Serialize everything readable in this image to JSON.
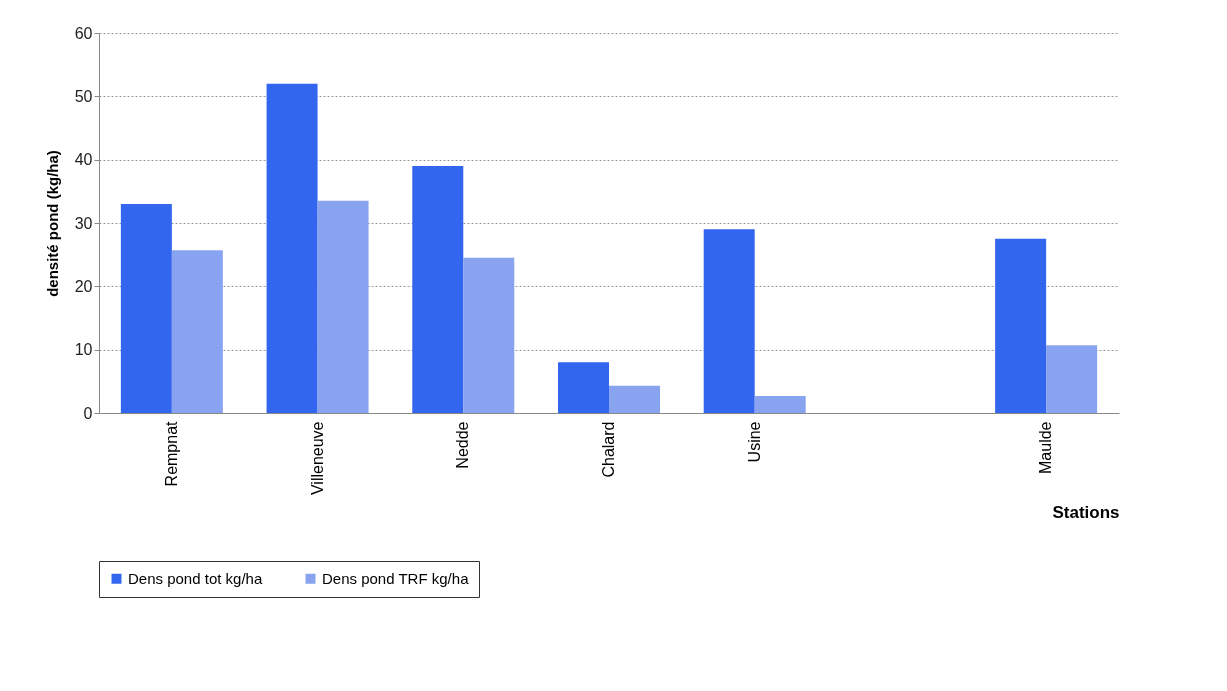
{
  "chart_data": {
    "type": "bar",
    "categories": [
      "Rempnat",
      "Villeneuve",
      "Nedde",
      "Chalard",
      "Usine",
      null,
      "Maulde"
    ],
    "series": [
      {
        "name": "Dens pond tot kg/ha",
        "color": "#3366ee",
        "values": [
          33,
          52,
          39,
          8,
          29,
          null,
          27.5
        ]
      },
      {
        "name": "Dens pond TRF kg/ha",
        "color": "#88a4f0",
        "values": [
          25.7,
          33.5,
          24.5,
          4.3,
          2.7,
          null,
          10.7
        ]
      }
    ],
    "xlabel": "Stations",
    "ylabel": "densité pond (kg/ha)",
    "ylim": [
      0,
      60
    ],
    "yticks": [
      0,
      10,
      20,
      30,
      40,
      50,
      60
    ],
    "grid": "y",
    "legend": "bottom"
  }
}
